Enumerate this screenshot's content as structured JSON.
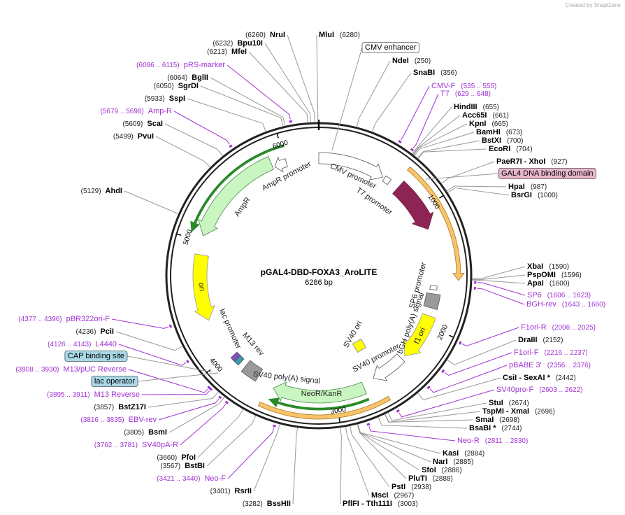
{
  "watermark": "Created by SnapGene",
  "name": "pGAL4-DBD-FOXA3_AroLITE",
  "size": {
    "value": 6286,
    "label": "6286 bp"
  },
  "ticks": [
    1000,
    2000,
    3000,
    4000,
    5000,
    6000
  ],
  "enzymes": [
    {
      "name": "MluI",
      "position": {
        "value": 6280,
        "label": "(6280)"
      }
    },
    {
      "name": "NdeI",
      "position": {
        "value": 250,
        "label": "(250)"
      }
    },
    {
      "name": "SnaBI",
      "position": {
        "value": 356,
        "label": "(356)"
      }
    },
    {
      "name": "HindIII",
      "position": {
        "value": 655,
        "label": "(655)"
      }
    },
    {
      "name": "Acc65I",
      "position": {
        "value": 661,
        "label": "(661)"
      }
    },
    {
      "name": "KpnI",
      "position": {
        "value": 665,
        "label": "(665)"
      }
    },
    {
      "name": "BamHI",
      "position": {
        "value": 673,
        "label": "(673)"
      }
    },
    {
      "name": "BstXI",
      "position": {
        "value": 700,
        "label": "(700)"
      }
    },
    {
      "name": "EcoRI",
      "position": {
        "value": 704,
        "label": "(704)"
      }
    },
    {
      "name": "PaeR7I - XhoI",
      "position": {
        "value": 927,
        "label": "(927)"
      }
    },
    {
      "name": "HpaI",
      "position": {
        "value": 987,
        "label": "(987)"
      }
    },
    {
      "name": "BsrGI",
      "position": {
        "value": 1000,
        "label": "(1000)"
      }
    },
    {
      "name": "XbaI",
      "position": {
        "value": 1590,
        "label": "(1590)"
      }
    },
    {
      "name": "PspOMI",
      "position": {
        "value": 1596,
        "label": "(1596)"
      }
    },
    {
      "name": "ApaI",
      "position": {
        "value": 1600,
        "label": "(1600)"
      }
    },
    {
      "name": "DraIII",
      "position": {
        "value": 2152,
        "label": "(2152)"
      }
    },
    {
      "name": "CsiI - SexAI *",
      "position": {
        "value": 2442,
        "label": "(2442)"
      }
    },
    {
      "name": "StuI",
      "position": {
        "value": 2674,
        "label": "(2674)"
      }
    },
    {
      "name": "TspMI - XmaI",
      "position": {
        "value": 2696,
        "label": "(2696)"
      }
    },
    {
      "name": "SmaI",
      "position": {
        "value": 2698,
        "label": "(2698)"
      }
    },
    {
      "name": "BsaBI *",
      "position": {
        "value": 2744,
        "label": "(2744)"
      }
    },
    {
      "name": "KasI",
      "position": {
        "value": 2884,
        "label": "(2884)"
      }
    },
    {
      "name": "NarI",
      "position": {
        "value": 2885,
        "label": "(2885)"
      }
    },
    {
      "name": "SfoI",
      "position": {
        "value": 2886,
        "label": "(2886)"
      }
    },
    {
      "name": "PluTI",
      "position": {
        "value": 2888,
        "label": "(2888)"
      }
    },
    {
      "name": "PstI",
      "position": {
        "value": 2938,
        "label": "(2938)"
      }
    },
    {
      "name": "MscI",
      "position": {
        "value": 2967,
        "label": "(2967)"
      }
    },
    {
      "name": "PflFI - Tth111I",
      "position": {
        "value": 3003,
        "label": "(3003)"
      }
    },
    {
      "name": "NruI",
      "position": {
        "value": 6260,
        "label": "(6260)"
      }
    },
    {
      "name": "Bpu10I",
      "position": {
        "value": 6232,
        "label": "(6232)"
      }
    },
    {
      "name": "MfeI",
      "position": {
        "value": 6213,
        "label": "(6213)"
      }
    },
    {
      "name": "BglII",
      "position": {
        "value": 6064,
        "label": "(6064)"
      }
    },
    {
      "name": "SgrDI",
      "position": {
        "value": 6050,
        "label": "(6050)"
      }
    },
    {
      "name": "SspI",
      "position": {
        "value": 5933,
        "label": "(5933)"
      }
    },
    {
      "name": "ScaI",
      "position": {
        "value": 5609,
        "label": "(5609)"
      }
    },
    {
      "name": "PvuI",
      "position": {
        "value": 5499,
        "label": "(5499)"
      }
    },
    {
      "name": "AhdI",
      "position": {
        "value": 5129,
        "label": "(5129)"
      }
    },
    {
      "name": "PciI",
      "position": {
        "value": 4236,
        "label": "(4236)"
      }
    },
    {
      "name": "BstZ17I",
      "position": {
        "value": 3857,
        "label": "(3857)"
      }
    },
    {
      "name": "BsmI",
      "position": {
        "value": 3805,
        "label": "(3805)"
      }
    },
    {
      "name": "PfoI",
      "position": {
        "value": 3660,
        "label": "(3660)"
      }
    },
    {
      "name": "BstBI",
      "position": {
        "value": 3567,
        "label": "(3567)"
      }
    },
    {
      "name": "RsrII",
      "position": {
        "value": 3401,
        "label": "(3401)"
      }
    },
    {
      "name": "BssHII",
      "position": {
        "value": 3282,
        "label": "(3282)"
      }
    }
  ],
  "primers": [
    {
      "name": "CMV-F",
      "range": {
        "start": 535,
        "end": 555,
        "label": "(535 .. 555)"
      }
    },
    {
      "name": "T7",
      "range": {
        "start": 629,
        "end": 648,
        "label": "(629 .. 648)"
      }
    },
    {
      "name": "SP6",
      "range": {
        "start": 1606,
        "end": 1623,
        "label": "(1606 .. 1623)"
      }
    },
    {
      "name": "BGH-rev",
      "range": {
        "start": 1643,
        "end": 1660,
        "label": "(1643 .. 1660)"
      }
    },
    {
      "name": "F1ori-R",
      "range": {
        "start": 2006,
        "end": 2025,
        "label": "(2006 .. 2025)"
      }
    },
    {
      "name": "F1ori-F",
      "range": {
        "start": 2216,
        "end": 2237,
        "label": "(2216 .. 2237)"
      }
    },
    {
      "name": "pBABE 3'",
      "range": {
        "start": 2356,
        "end": 2376,
        "label": "(2356 .. 2376)"
      }
    },
    {
      "name": "SV40pro-F",
      "range": {
        "start": 2603,
        "end": 2622,
        "label": "(2603 .. 2622)"
      }
    },
    {
      "name": "Neo-R",
      "range": {
        "start": 2811,
        "end": 2830,
        "label": "(2811 .. 2830)"
      }
    },
    {
      "name": "pRS-marker",
      "range": {
        "start": 6096,
        "end": 6115,
        "label": "(6096 .. 6115)"
      }
    },
    {
      "name": "Amp-R",
      "range": {
        "start": 5679,
        "end": 5698,
        "label": "(5679 .. 5698)"
      }
    },
    {
      "name": "pBR322ori-F",
      "range": {
        "start": 4377,
        "end": 4396,
        "label": "(4377 .. 4396)"
      }
    },
    {
      "name": "L4440",
      "range": {
        "start": 4126,
        "end": 4143,
        "label": "(4126 .. 4143)"
      }
    },
    {
      "name": "M13/pUC Reverse",
      "range": {
        "start": 3908,
        "end": 3930,
        "label": "(3908 .. 3930)"
      }
    },
    {
      "name": "M13 Reverse",
      "range": {
        "start": 3895,
        "end": 3911,
        "label": "(3895 .. 3911)"
      }
    },
    {
      "name": "EBV-rev",
      "range": {
        "start": 3816,
        "end": 3835,
        "label": "(3816 .. 3835)"
      }
    },
    {
      "name": "SV40pA-R",
      "range": {
        "start": 3762,
        "end": 3781,
        "label": "(3762 .. 3781)"
      }
    },
    {
      "name": "Neo-F",
      "range": {
        "start": 3421,
        "end": 3440,
        "label": "(3421 .. 3440)"
      }
    }
  ],
  "callouts": [
    "CMV enhancer",
    "GAL4 DNA binding domain",
    "CAP binding site",
    "lac operator"
  ],
  "features": [
    "CMV promoter",
    "T7 promoter",
    "SP6 promoter",
    "bGH poly(A) signal",
    "f1 ori",
    "SV40 ori",
    "SV40 promoter",
    "NeoR/KanR",
    "SV40 poly(A) signal",
    "M13 rev",
    "lac promoter",
    "ori",
    "AmpR",
    "AmpR promoter"
  ]
}
